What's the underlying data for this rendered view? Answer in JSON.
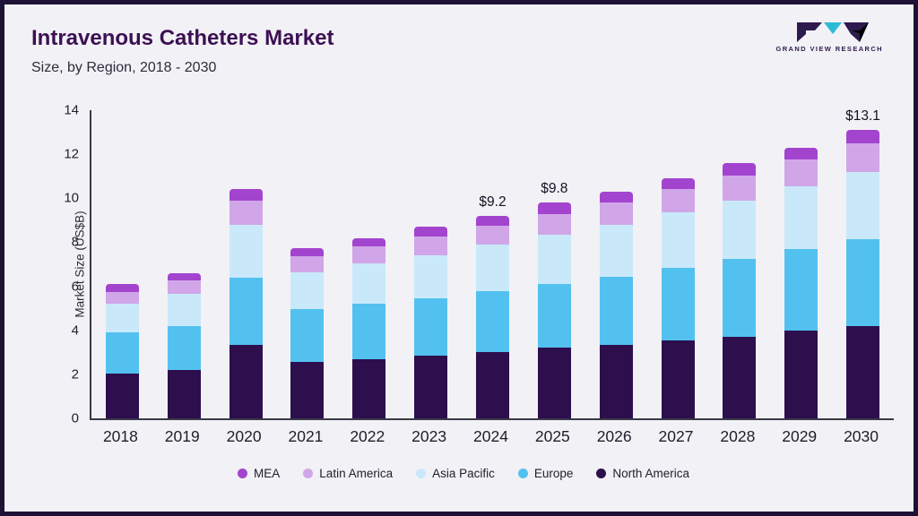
{
  "header": {
    "title": "Intravenous Catheters Market",
    "subtitle": "Size, by Region, 2018 - 2030",
    "logo_text": "GRAND VIEW RESEARCH"
  },
  "colors": {
    "accent_teal": "#2bbcd4",
    "logo_dark": "#2d1b4e",
    "frame_border": "#1d1236",
    "background": "#f2f1f6"
  },
  "chart_data": {
    "type": "bar",
    "stacked": true,
    "title": "Intravenous Catheters Market Size, by Region, 2018 - 2030",
    "xlabel": "",
    "ylabel": "Market Size (US$B)",
    "ylim": [
      0,
      14
    ],
    "yticks": [
      0,
      2,
      4,
      6,
      8,
      10,
      12,
      14
    ],
    "grid": false,
    "legend_position": "bottom",
    "categories": [
      "2018",
      "2019",
      "2020",
      "2021",
      "2022",
      "2023",
      "2024",
      "2025",
      "2026",
      "2027",
      "2028",
      "2029",
      "2030"
    ],
    "series": [
      {
        "name": "North America",
        "color": "#2d0f4e",
        "values": [
          2.05,
          2.2,
          3.35,
          2.55,
          2.7,
          2.85,
          3.0,
          3.2,
          3.35,
          3.55,
          3.7,
          4.0,
          4.2
        ]
      },
      {
        "name": "Europe",
        "color": "#53c1ef",
        "values": [
          1.85,
          2.0,
          3.05,
          2.4,
          2.5,
          2.6,
          2.8,
          2.9,
          3.1,
          3.3,
          3.55,
          3.7,
          3.95
        ]
      },
      {
        "name": "Asia Pacific",
        "color": "#c9e9fa",
        "values": [
          1.3,
          1.45,
          2.4,
          1.7,
          1.85,
          1.95,
          2.1,
          2.25,
          2.35,
          2.5,
          2.65,
          2.85,
          3.05
        ]
      },
      {
        "name": "Latin America",
        "color": "#d0a6e8",
        "values": [
          0.55,
          0.6,
          1.1,
          0.7,
          0.75,
          0.85,
          0.85,
          0.95,
          1.0,
          1.05,
          1.15,
          1.2,
          1.3
        ]
      },
      {
        "name": "MEA",
        "color": "#a344cf",
        "values": [
          0.35,
          0.35,
          0.5,
          0.4,
          0.4,
          0.45,
          0.45,
          0.5,
          0.5,
          0.5,
          0.55,
          0.55,
          0.6
        ]
      }
    ],
    "totals": [
      6.1,
      6.6,
      10.4,
      7.75,
      8.2,
      8.7,
      9.2,
      9.8,
      10.3,
      10.9,
      11.6,
      12.3,
      13.1
    ],
    "annotations": [
      {
        "category": "2024",
        "label": "$9.2"
      },
      {
        "category": "2025",
        "label": "$9.8"
      },
      {
        "category": "2030",
        "label": "$13.1"
      }
    ],
    "legend_items": [
      {
        "label": "MEA",
        "color": "#a344cf"
      },
      {
        "label": "Latin America",
        "color": "#d0a6e8"
      },
      {
        "label": "Asia Pacific",
        "color": "#c9e9fa"
      },
      {
        "label": "Europe",
        "color": "#53c1ef"
      },
      {
        "label": "North America",
        "color": "#2d0f4e"
      }
    ]
  }
}
